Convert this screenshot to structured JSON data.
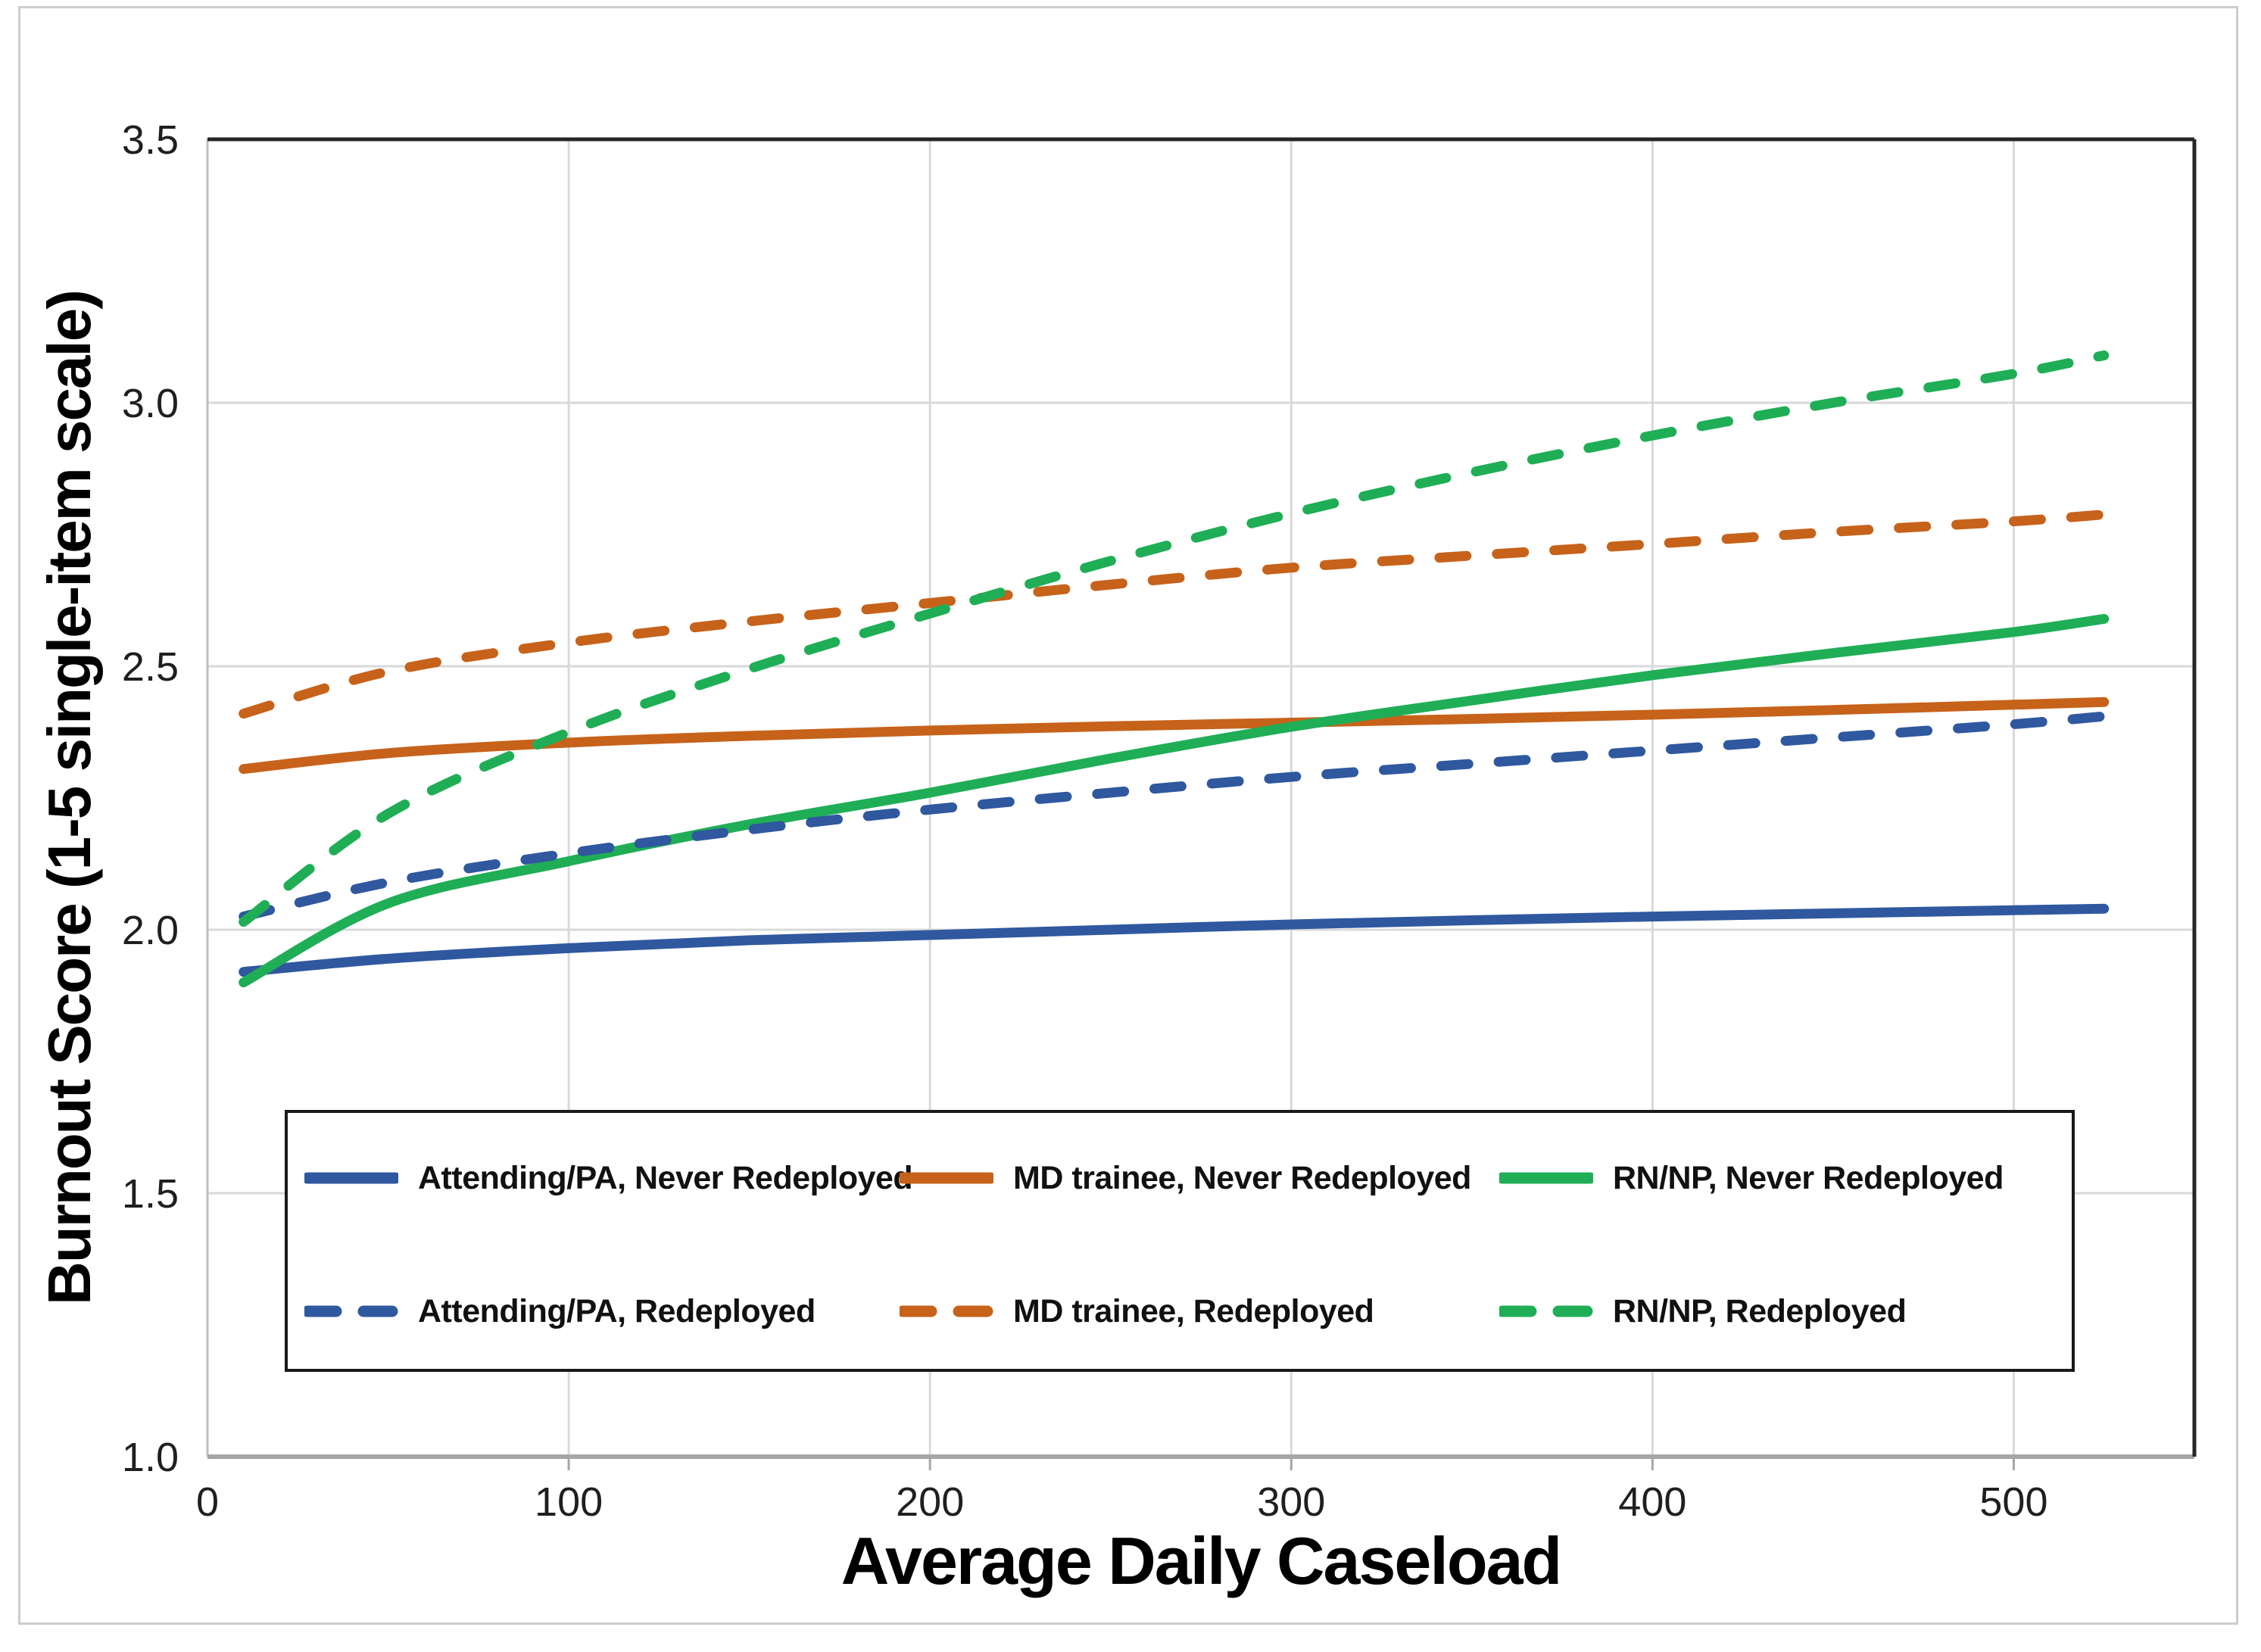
{
  "figure": {
    "background": "#FFFFFF",
    "border_color": "#CDCDCD"
  },
  "chart_data": {
    "type": "line",
    "title": "",
    "xlabel": "Average Daily Caseload",
    "ylabel": "Burnout Score (1-5 single-item scale)",
    "xlim": [
      0,
      550
    ],
    "ylim": [
      1.0,
      3.5
    ],
    "x_ticks": [
      "0",
      "100",
      "200",
      "300",
      "400",
      "500"
    ],
    "y_ticks": [
      "1.0",
      "1.5",
      "2.0",
      "2.5",
      "3.0",
      "3.5"
    ],
    "grid": true,
    "legend_position": "inside-bottom",
    "x": [
      10,
      50,
      100,
      150,
      200,
      250,
      300,
      350,
      400,
      450,
      500,
      525
    ],
    "series": [
      {
        "name": "Attending/PA, Never Redeployed",
        "color": "#2F589F",
        "dash": "solid",
        "values": [
          1.92,
          1.945,
          1.965,
          1.98,
          1.99,
          2.0,
          2.01,
          2.018,
          2.025,
          2.031,
          2.037,
          2.04
        ]
      },
      {
        "name": "MD trainee, Never Redeployed",
        "color": "#C7621A",
        "dash": "solid",
        "values": [
          2.305,
          2.335,
          2.355,
          2.368,
          2.378,
          2.386,
          2.393,
          2.4,
          2.408,
          2.417,
          2.427,
          2.432
        ]
      },
      {
        "name": "RN/NP, Never Redeployed",
        "color": "#1FAE56",
        "dash": "solid",
        "values": [
          1.9,
          2.05,
          2.13,
          2.2,
          2.26,
          2.325,
          2.385,
          2.435,
          2.483,
          2.525,
          2.565,
          2.59
        ]
      },
      {
        "name": "Attending/PA, Redeployed",
        "color": "#2F589F",
        "dash": "dashed",
        "values": [
          2.025,
          2.09,
          2.145,
          2.19,
          2.228,
          2.26,
          2.29,
          2.315,
          2.34,
          2.365,
          2.39,
          2.405
        ]
      },
      {
        "name": "MD trainee, Redeployed",
        "color": "#C7621A",
        "dash": "dashed",
        "values": [
          2.41,
          2.49,
          2.545,
          2.585,
          2.62,
          2.655,
          2.687,
          2.71,
          2.732,
          2.755,
          2.775,
          2.788
        ]
      },
      {
        "name": "RN/NP, Redeployed",
        "color": "#1FAE56",
        "dash": "dashed",
        "values": [
          2.015,
          2.22,
          2.375,
          2.495,
          2.6,
          2.7,
          2.79,
          2.868,
          2.938,
          3.0,
          3.055,
          3.09
        ]
      }
    ]
  }
}
